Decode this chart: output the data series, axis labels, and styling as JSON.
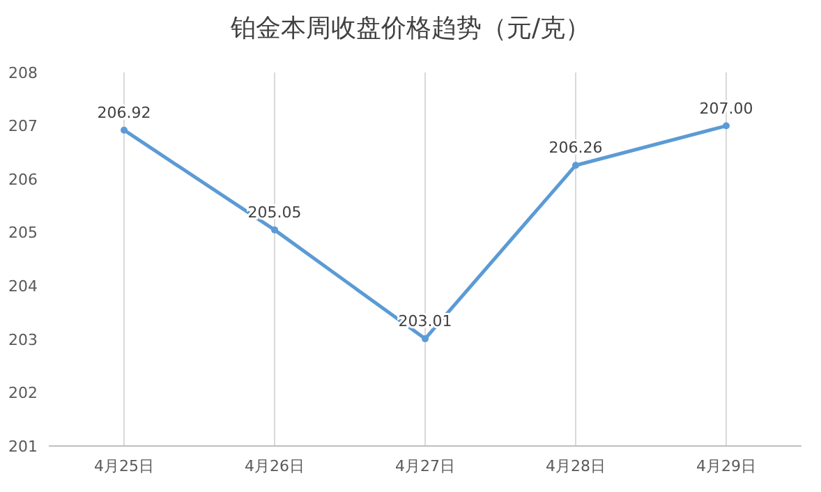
{
  "chart_data": {
    "type": "line",
    "title": "铂金本周收盘价格趋势（元/克）",
    "categories": [
      "4月25日",
      "4月26日",
      "4月27日",
      "4月28日",
      "4月29日"
    ],
    "series": [
      {
        "color": "#5b9bd5",
        "values": [
          206.92,
          205.05,
          203.01,
          206.26,
          207.0
        ]
      }
    ],
    "value_labels": [
      "206.92",
      "205.05",
      "203.01",
      "206.26",
      "207.00"
    ],
    "ylim": [
      201,
      208
    ],
    "yticks": [
      201,
      202,
      203,
      204,
      205,
      206,
      207,
      208
    ],
    "grid": "x",
    "marker": "circle",
    "line_style": "solid"
  }
}
